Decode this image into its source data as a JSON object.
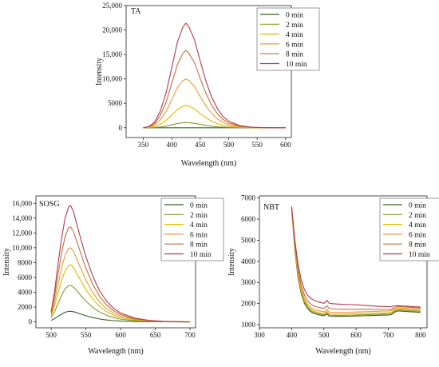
{
  "figure": {
    "colors": {
      "0 min": "#3d5f22",
      "2 min": "#8a9a2a",
      "4 min": "#e6b800",
      "6 min": "#e89a3c",
      "8 min": "#c0703e",
      "10 min": "#b23a4e"
    }
  },
  "chart_data": [
    {
      "id": "ta",
      "type": "line",
      "title": "TA",
      "xlabel": "Wavelength (nm)",
      "ylabel": "Intensity",
      "xlim": [
        320,
        610
      ],
      "ylim": [
        -2000,
        25000
      ],
      "xticks": [
        350,
        400,
        450,
        500,
        550,
        600
      ],
      "yticks": [
        0,
        5000,
        10000,
        15000,
        20000,
        25000
      ],
      "ytick_labels": [
        "0",
        "5000",
        "10,000",
        "15,000",
        "20,000",
        "25,000"
      ],
      "grid": false,
      "legend_position": "top-right",
      "x": [
        350,
        360,
        370,
        380,
        390,
        400,
        410,
        420,
        425,
        430,
        440,
        450,
        460,
        470,
        480,
        490,
        500,
        520,
        540,
        560,
        580,
        600
      ],
      "series": [
        {
          "name": "0 min",
          "values": [
            0,
            0,
            0,
            0,
            0,
            0,
            0,
            0,
            0,
            0,
            0,
            0,
            0,
            0,
            0,
            0,
            0,
            0,
            0,
            0,
            0,
            0
          ]
        },
        {
          "name": "2 min",
          "values": [
            0,
            20,
            60,
            150,
            320,
            580,
            860,
            1040,
            1080,
            1050,
            900,
            680,
            480,
            320,
            200,
            120,
            70,
            20,
            0,
            0,
            0,
            0
          ]
        },
        {
          "name": "4 min",
          "values": [
            0,
            60,
            250,
            700,
            1500,
            2600,
            3700,
            4400,
            4600,
            4450,
            3850,
            2950,
            2050,
            1350,
            850,
            500,
            300,
            100,
            30,
            0,
            0,
            0
          ]
        },
        {
          "name": "6 min",
          "values": [
            0,
            130,
            550,
            1600,
            3300,
            5700,
            8200,
            9700,
            10000,
            9700,
            8400,
            6400,
            4500,
            2950,
            1850,
            1100,
            650,
            200,
            60,
            0,
            0,
            0
          ]
        },
        {
          "name": "8 min",
          "values": [
            0,
            200,
            850,
            2500,
            5200,
            9000,
            12900,
            15300,
            15800,
            15300,
            13300,
            10100,
            7100,
            4650,
            2900,
            1700,
            1000,
            320,
            100,
            0,
            0,
            0
          ]
        },
        {
          "name": "10 min",
          "values": [
            0,
            280,
            1150,
            3400,
            7100,
            12200,
            17500,
            20700,
            21400,
            20700,
            18000,
            13700,
            9600,
            6300,
            3950,
            2300,
            1350,
            430,
            130,
            30,
            0,
            0
          ]
        }
      ]
    },
    {
      "id": "sosg",
      "type": "line",
      "title": "SOSG",
      "xlabel": "Wavelength (nm)",
      "ylabel": "Intensity",
      "xlim": [
        478,
        708
      ],
      "ylim": [
        -800,
        17000
      ],
      "xticks": [
        500,
        550,
        600,
        650,
        700
      ],
      "yticks": [
        0,
        2000,
        4000,
        6000,
        8000,
        10000,
        12000,
        14000,
        16000
      ],
      "ytick_labels": [
        "0",
        "2000",
        "4000",
        "6000",
        "8000",
        "10,000",
        "12,000",
        "14,000",
        "16,000"
      ],
      "grid": false,
      "legend_position": "top-right",
      "x": [
        500,
        505,
        510,
        515,
        520,
        525,
        528,
        532,
        536,
        540,
        545,
        550,
        560,
        570,
        580,
        590,
        600,
        620,
        640,
        660,
        680,
        700
      ],
      "series": [
        {
          "name": "0 min",
          "values": [
            200,
            450,
            750,
            1050,
            1300,
            1420,
            1430,
            1380,
            1270,
            1140,
            980,
            830,
            580,
            390,
            260,
            170,
            110,
            50,
            20,
            10,
            0,
            0
          ]
        },
        {
          "name": "2 min",
          "values": [
            550,
            1400,
            2500,
            3600,
            4450,
            4880,
            4920,
            4700,
            4300,
            3850,
            3300,
            2800,
            1950,
            1320,
            880,
            580,
            380,
            170,
            70,
            30,
            10,
            0
          ]
        },
        {
          "name": "4 min",
          "values": [
            800,
            2200,
            3900,
            5600,
            6900,
            7600,
            7700,
            7350,
            6700,
            6000,
            5150,
            4350,
            3050,
            2050,
            1370,
            900,
            590,
            260,
            110,
            50,
            20,
            0
          ]
        },
        {
          "name": "6 min",
          "values": [
            1000,
            2800,
            5100,
            7300,
            9000,
            9900,
            10000,
            9550,
            8700,
            7800,
            6700,
            5650,
            3950,
            2650,
            1780,
            1170,
            770,
            340,
            140,
            60,
            20,
            0
          ]
        },
        {
          "name": "8 min",
          "values": [
            1200,
            3500,
            6500,
            9300,
            11500,
            12700,
            12800,
            12200,
            11100,
            10000,
            8600,
            7250,
            5050,
            3400,
            2280,
            1500,
            990,
            430,
            180,
            70,
            30,
            0
          ]
        },
        {
          "name": "10 min",
          "values": [
            1400,
            4200,
            7900,
            11300,
            14000,
            15500,
            15700,
            14900,
            13500,
            12100,
            10400,
            8800,
            6150,
            4150,
            2770,
            1820,
            1200,
            520,
            220,
            90,
            30,
            0
          ]
        }
      ]
    },
    {
      "id": "nbt",
      "type": "line",
      "title": "NBT",
      "xlabel": "Wavelength (nm)",
      "ylabel": "Intensity",
      "xlim": [
        300,
        820
      ],
      "ylim": [
        850,
        7100
      ],
      "xticks": [
        300,
        400,
        500,
        600,
        700,
        800
      ],
      "yticks": [
        1000,
        2000,
        3000,
        4000,
        5000,
        6000,
        7000
      ],
      "ytick_labels": [
        "1000",
        "2000",
        "3000",
        "4000",
        "5000",
        "6000",
        "7000"
      ],
      "grid": false,
      "legend_position": "top-right",
      "x": [
        400,
        410,
        420,
        430,
        440,
        450,
        460,
        470,
        480,
        490,
        500,
        510,
        515,
        520,
        540,
        560,
        580,
        600,
        620,
        640,
        660,
        680,
        700,
        710,
        720,
        730,
        740,
        760,
        780,
        800
      ],
      "series": [
        {
          "name": "0 min",
          "values": [
            6500,
            4500,
            3200,
            2450,
            2000,
            1750,
            1600,
            1530,
            1480,
            1450,
            1420,
            1500,
            1420,
            1400,
            1390,
            1390,
            1400,
            1410,
            1420,
            1430,
            1440,
            1450,
            1460,
            1480,
            1600,
            1650,
            1640,
            1620,
            1600,
            1580
          ]
        },
        {
          "name": "2 min",
          "values": [
            6520,
            4560,
            3280,
            2520,
            2070,
            1800,
            1650,
            1580,
            1530,
            1500,
            1470,
            1560,
            1470,
            1450,
            1440,
            1440,
            1450,
            1460,
            1470,
            1480,
            1490,
            1500,
            1510,
            1530,
            1650,
            1700,
            1690,
            1670,
            1650,
            1630
          ]
        },
        {
          "name": "4 min",
          "values": [
            6540,
            4620,
            3360,
            2600,
            2140,
            1860,
            1710,
            1640,
            1590,
            1560,
            1530,
            1630,
            1530,
            1510,
            1500,
            1500,
            1510,
            1520,
            1530,
            1540,
            1550,
            1560,
            1570,
            1590,
            1700,
            1750,
            1740,
            1720,
            1700,
            1680
          ]
        },
        {
          "name": "6 min",
          "values": [
            6560,
            4700,
            3450,
            2690,
            2230,
            1940,
            1790,
            1720,
            1670,
            1640,
            1610,
            1720,
            1610,
            1590,
            1580,
            1580,
            1590,
            1600,
            1610,
            1620,
            1630,
            1640,
            1650,
            1670,
            1760,
            1800,
            1790,
            1770,
            1750,
            1730
          ]
        },
        {
          "name": "8 min",
          "values": [
            6580,
            4820,
            3600,
            2850,
            2400,
            2110,
            1960,
            1880,
            1830,
            1800,
            1770,
            1900,
            1780,
            1760,
            1740,
            1730,
            1730,
            1730,
            1730,
            1730,
            1720,
            1720,
            1720,
            1730,
            1820,
            1860,
            1850,
            1830,
            1810,
            1790
          ]
        },
        {
          "name": "10 min",
          "values": [
            6600,
            5000,
            3850,
            3100,
            2650,
            2380,
            2240,
            2150,
            2090,
            2050,
            2010,
            2150,
            2030,
            2000,
            1980,
            1960,
            1950,
            1940,
            1920,
            1900,
            1880,
            1860,
            1850,
            1860,
            1890,
            1900,
            1890,
            1870,
            1850,
            1830
          ]
        }
      ]
    }
  ]
}
